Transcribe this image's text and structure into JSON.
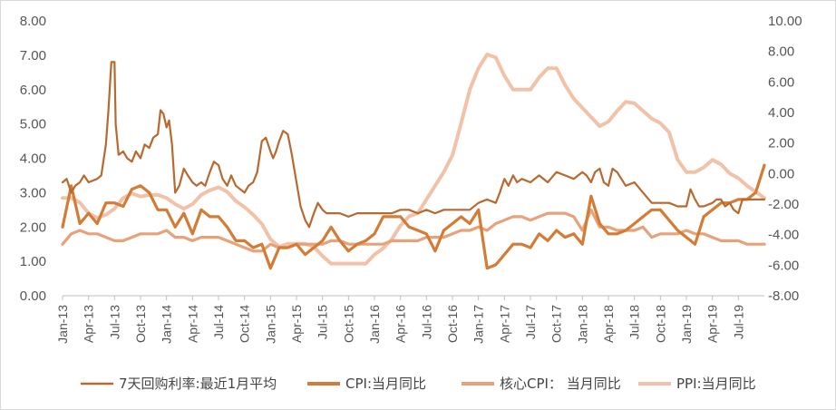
{
  "chart_data": {
    "type": "line",
    "title": "",
    "xlabel": "",
    "ylabel": "",
    "y_left": {
      "min": 0,
      "max": 8,
      "ticks": [
        "0.00",
        "1.00",
        "2.00",
        "3.00",
        "4.00",
        "5.00",
        "6.00",
        "7.00",
        "8.00"
      ]
    },
    "y_right": {
      "min": -8,
      "max": 10,
      "ticks": [
        "-8.00",
        "-6.00",
        "-4.00",
        "-2.00",
        "0.00",
        "2.00",
        "4.00",
        "6.00",
        "8.00",
        "10.00"
      ]
    },
    "x_ticks": [
      "Jan-13",
      "Apr-13",
      "Jul-13",
      "Oct-13",
      "Jan-14",
      "Apr-14",
      "Jul-14",
      "Oct-14",
      "Jan-15",
      "Apr-15",
      "Jul-15",
      "Oct-15",
      "Jan-16",
      "Apr-16",
      "Jul-16",
      "Oct-16",
      "Jan-17",
      "Apr-17",
      "Jul-17",
      "Oct-17",
      "Jan-18",
      "Apr-18",
      "Jul-18",
      "Oct-18",
      "Jan-19",
      "Apr-19",
      "Jul-19"
    ],
    "x_range": [
      "2013-01",
      "2019-10"
    ],
    "grid": false,
    "legend_position": "bottom",
    "series": [
      {
        "name": "7天回购利率:最近1月平均",
        "axis": "left",
        "color": "#b8692f",
        "x": [
          "2013-01",
          "2013-01-15",
          "2013-02",
          "2013-02-15",
          "2013-03",
          "2013-03-15",
          "2013-04",
          "2013-05",
          "2013-05-15",
          "2013-06",
          "2013-06-10",
          "2013-06-20",
          "2013-07",
          "2013-07-05",
          "2013-07-15",
          "2013-08",
          "2013-08-15",
          "2013-09",
          "2013-09-15",
          "2013-10",
          "2013-10-15",
          "2013-11",
          "2013-11-15",
          "2013-12",
          "2013-12-10",
          "2013-12-20",
          "2014-01",
          "2014-01-10",
          "2014-01-20",
          "2014-02",
          "2014-02-15",
          "2014-03",
          "2014-03-15",
          "2014-04",
          "2014-04-15",
          "2014-05",
          "2014-05-15",
          "2014-06",
          "2014-06-15",
          "2014-07",
          "2014-07-15",
          "2014-08",
          "2014-08-15",
          "2014-09",
          "2014-10",
          "2014-10-15",
          "2014-11",
          "2014-11-15",
          "2014-12",
          "2014-12-15",
          "2015-01",
          "2015-01-10",
          "2015-01-20",
          "2015-02",
          "2015-02-15",
          "2015-03",
          "2015-03-15",
          "2015-04",
          "2015-04-15",
          "2015-05",
          "2015-05-15",
          "2015-06",
          "2015-06-15",
          "2015-07",
          "2015-07-15",
          "2015-08",
          "2015-09",
          "2015-10",
          "2015-11",
          "2015-12",
          "2016-01",
          "2016-02",
          "2016-03",
          "2016-04",
          "2016-05",
          "2016-06",
          "2016-07",
          "2016-08",
          "2016-09",
          "2016-10",
          "2016-11",
          "2016-12",
          "2017-01",
          "2017-02",
          "2017-03",
          "2017-03-15",
          "2017-04",
          "2017-04-15",
          "2017-05",
          "2017-05-15",
          "2017-06",
          "2017-07",
          "2017-08",
          "2017-09",
          "2017-10",
          "2017-11",
          "2017-12",
          "2018-01",
          "2018-01-15",
          "2018-02",
          "2018-02-15",
          "2018-03",
          "2018-03-15",
          "2018-04",
          "2018-04-15",
          "2018-05",
          "2018-06",
          "2018-07",
          "2018-08",
          "2018-09",
          "2018-10",
          "2018-11",
          "2018-12",
          "2019-01",
          "2019-01-15",
          "2019-02",
          "2019-02-15",
          "2019-03",
          "2019-04",
          "2019-04-15",
          "2019-05",
          "2019-05-15",
          "2019-06",
          "2019-06-15",
          "2019-07",
          "2019-07-15",
          "2019-08",
          "2019-09",
          "2019-10"
        ],
        "values": [
          3.3,
          3.4,
          3.0,
          3.2,
          3.3,
          3.5,
          3.3,
          3.4,
          3.5,
          4.4,
          5.4,
          6.8,
          6.8,
          5.0,
          4.1,
          4.2,
          4.0,
          3.9,
          4.2,
          4.0,
          4.4,
          4.3,
          4.6,
          4.7,
          5.4,
          5.3,
          4.9,
          5.1,
          4.4,
          3.0,
          3.2,
          3.7,
          3.5,
          3.3,
          3.2,
          3.3,
          3.2,
          3.6,
          3.9,
          3.8,
          3.4,
          3.2,
          3.5,
          3.2,
          3.0,
          3.2,
          3.3,
          3.6,
          4.5,
          4.6,
          4.2,
          4.0,
          4.2,
          4.5,
          4.8,
          4.7,
          4.1,
          3.3,
          2.6,
          2.2,
          2.0,
          2.4,
          2.7,
          2.5,
          2.4,
          2.4,
          2.4,
          2.3,
          2.4,
          2.4,
          2.4,
          2.4,
          2.4,
          2.5,
          2.5,
          2.4,
          2.5,
          2.4,
          2.5,
          2.5,
          2.5,
          2.5,
          2.7,
          2.8,
          2.7,
          3.0,
          3.4,
          3.2,
          3.5,
          3.3,
          3.4,
          3.3,
          3.5,
          3.3,
          3.6,
          3.5,
          3.4,
          3.6,
          3.5,
          3.3,
          3.6,
          3.7,
          3.3,
          3.2,
          3.7,
          3.6,
          3.2,
          3.3,
          3.0,
          2.7,
          2.7,
          2.7,
          2.6,
          2.6,
          3.1,
          2.8,
          2.6,
          2.6,
          2.7,
          2.8,
          2.8,
          2.6,
          2.7,
          2.5,
          2.4,
          2.8,
          2.8,
          2.8,
          2.8
        ]
      },
      {
        "name": "CPI:当月同比",
        "axis": "left",
        "color": "#d47b35",
        "x": [
          "2013-01",
          "2013-02",
          "2013-03",
          "2013-04",
          "2013-05",
          "2013-06",
          "2013-07",
          "2013-08",
          "2013-09",
          "2013-10",
          "2013-11",
          "2013-12",
          "2014-01",
          "2014-02",
          "2014-03",
          "2014-04",
          "2014-05",
          "2014-06",
          "2014-07",
          "2014-08",
          "2014-09",
          "2014-10",
          "2014-11",
          "2014-12",
          "2015-01",
          "2015-02",
          "2015-03",
          "2015-04",
          "2015-05",
          "2015-06",
          "2015-07",
          "2015-08",
          "2015-09",
          "2015-10",
          "2015-11",
          "2015-12",
          "2016-01",
          "2016-02",
          "2016-03",
          "2016-04",
          "2016-05",
          "2016-06",
          "2016-07",
          "2016-08",
          "2016-09",
          "2016-10",
          "2016-11",
          "2016-12",
          "2017-01",
          "2017-02",
          "2017-03",
          "2017-04",
          "2017-05",
          "2017-06",
          "2017-07",
          "2017-08",
          "2017-09",
          "2017-10",
          "2017-11",
          "2017-12",
          "2018-01",
          "2018-02",
          "2018-03",
          "2018-04",
          "2018-05",
          "2018-06",
          "2018-07",
          "2018-08",
          "2018-09",
          "2018-10",
          "2018-11",
          "2018-12",
          "2019-01",
          "2019-02",
          "2019-03",
          "2019-04",
          "2019-05",
          "2019-06",
          "2019-07",
          "2019-08",
          "2019-09",
          "2019-10"
        ],
        "values": [
          2.0,
          3.2,
          2.1,
          2.4,
          2.1,
          2.7,
          2.7,
          2.6,
          3.1,
          3.2,
          3.0,
          2.5,
          2.5,
          2.0,
          2.4,
          1.8,
          2.5,
          2.3,
          2.3,
          2.0,
          1.6,
          1.6,
          1.4,
          1.5,
          0.8,
          1.4,
          1.4,
          1.5,
          1.2,
          1.4,
          1.6,
          2.0,
          1.6,
          1.3,
          1.5,
          1.6,
          1.8,
          2.3,
          2.3,
          2.3,
          2.0,
          1.9,
          1.8,
          1.3,
          1.9,
          2.1,
          2.3,
          2.1,
          2.5,
          0.8,
          0.9,
          1.2,
          1.5,
          1.5,
          1.4,
          1.8,
          1.6,
          1.9,
          1.7,
          1.8,
          1.5,
          2.9,
          2.1,
          1.8,
          1.8,
          1.9,
          2.1,
          2.3,
          2.5,
          2.5,
          2.2,
          1.9,
          1.7,
          1.5,
          2.3,
          2.5,
          2.7,
          2.7,
          2.8,
          2.8,
          3.0,
          3.8
        ]
      },
      {
        "name": "核心CPI： 当月同比",
        "axis": "left",
        "color": "#e8a27a",
        "x": [
          "2013-01",
          "2013-02",
          "2013-03",
          "2013-04",
          "2013-05",
          "2013-06",
          "2013-07",
          "2013-08",
          "2013-09",
          "2013-10",
          "2013-11",
          "2013-12",
          "2014-01",
          "2014-02",
          "2014-03",
          "2014-04",
          "2014-05",
          "2014-06",
          "2014-07",
          "2014-08",
          "2014-09",
          "2014-10",
          "2014-11",
          "2014-12",
          "2015-01",
          "2015-02",
          "2015-03",
          "2015-04",
          "2015-05",
          "2015-06",
          "2015-07",
          "2015-08",
          "2015-09",
          "2015-10",
          "2015-11",
          "2015-12",
          "2016-01",
          "2016-02",
          "2016-03",
          "2016-04",
          "2016-05",
          "2016-06",
          "2016-07",
          "2016-08",
          "2016-09",
          "2016-10",
          "2016-11",
          "2016-12",
          "2017-01",
          "2017-02",
          "2017-03",
          "2017-04",
          "2017-05",
          "2017-06",
          "2017-07",
          "2017-08",
          "2017-09",
          "2017-10",
          "2017-11",
          "2017-12",
          "2018-01",
          "2018-02",
          "2018-03",
          "2018-04",
          "2018-05",
          "2018-06",
          "2018-07",
          "2018-08",
          "2018-09",
          "2018-10",
          "2018-11",
          "2018-12",
          "2019-01",
          "2019-02",
          "2019-03",
          "2019-04",
          "2019-05",
          "2019-06",
          "2019-07",
          "2019-08",
          "2019-09",
          "2019-10"
        ],
        "values": [
          1.5,
          1.8,
          1.9,
          1.8,
          1.8,
          1.7,
          1.6,
          1.6,
          1.7,
          1.8,
          1.8,
          1.8,
          1.9,
          1.7,
          1.7,
          1.6,
          1.7,
          1.7,
          1.7,
          1.6,
          1.5,
          1.4,
          1.3,
          1.3,
          1.5,
          1.4,
          1.4,
          1.5,
          1.5,
          1.5,
          1.5,
          1.6,
          1.6,
          1.5,
          1.5,
          1.5,
          1.5,
          1.5,
          1.6,
          1.6,
          1.6,
          1.6,
          1.7,
          1.7,
          1.7,
          1.8,
          1.9,
          1.9,
          2.0,
          1.9,
          2.1,
          2.2,
          2.3,
          2.3,
          2.2,
          2.3,
          2.4,
          2.4,
          2.4,
          2.3,
          1.9,
          2.5,
          2.0,
          2.0,
          1.9,
          1.9,
          1.9,
          2.0,
          1.7,
          1.8,
          1.8,
          1.8,
          1.9,
          1.8,
          1.8,
          1.7,
          1.6,
          1.6,
          1.6,
          1.5,
          1.5,
          1.5
        ]
      },
      {
        "name": "PPI:当月同比",
        "axis": "right",
        "color": "#f2c2a8",
        "x": [
          "2013-01",
          "2013-02",
          "2013-03",
          "2013-04",
          "2013-05",
          "2013-06",
          "2013-07",
          "2013-08",
          "2013-09",
          "2013-10",
          "2013-11",
          "2013-12",
          "2014-01",
          "2014-02",
          "2014-03",
          "2014-04",
          "2014-05",
          "2014-06",
          "2014-07",
          "2014-08",
          "2014-09",
          "2014-10",
          "2014-11",
          "2014-12",
          "2015-01",
          "2015-02",
          "2015-03",
          "2015-04",
          "2015-05",
          "2015-06",
          "2015-07",
          "2015-08",
          "2015-09",
          "2015-10",
          "2015-11",
          "2015-12",
          "2016-01",
          "2016-02",
          "2016-03",
          "2016-04",
          "2016-05",
          "2016-06",
          "2016-07",
          "2016-08",
          "2016-09",
          "2016-10",
          "2016-11",
          "2016-12",
          "2017-01",
          "2017-02",
          "2017-03",
          "2017-04",
          "2017-05",
          "2017-06",
          "2017-07",
          "2017-08",
          "2017-09",
          "2017-10",
          "2017-11",
          "2017-12",
          "2018-01",
          "2018-02",
          "2018-03",
          "2018-04",
          "2018-05",
          "2018-06",
          "2018-07",
          "2018-08",
          "2018-09",
          "2018-10",
          "2018-11",
          "2018-12",
          "2019-01",
          "2019-02",
          "2019-03",
          "2019-04",
          "2019-05",
          "2019-06",
          "2019-07",
          "2019-08",
          "2019-09",
          "2019-10"
        ],
        "values": [
          -1.6,
          -1.6,
          -1.9,
          -2.6,
          -2.9,
          -2.7,
          -2.3,
          -1.6,
          -1.3,
          -1.5,
          -1.4,
          -1.4,
          -1.6,
          -2.0,
          -2.3,
          -2.0,
          -1.4,
          -1.1,
          -0.9,
          -1.2,
          -1.8,
          -2.2,
          -2.7,
          -3.3,
          -4.3,
          -4.8,
          -4.6,
          -4.6,
          -4.6,
          -4.8,
          -5.4,
          -5.9,
          -5.9,
          -5.9,
          -5.9,
          -5.9,
          -5.3,
          -4.9,
          -4.3,
          -3.4,
          -2.8,
          -2.6,
          -1.7,
          -0.8,
          0.1,
          1.2,
          3.3,
          5.5,
          6.9,
          7.8,
          7.6,
          6.4,
          5.5,
          5.5,
          5.5,
          6.3,
          6.9,
          6.9,
          5.8,
          4.9,
          4.3,
          3.7,
          3.1,
          3.4,
          4.1,
          4.7,
          4.6,
          4.1,
          3.6,
          3.3,
          2.7,
          0.9,
          0.1,
          0.1,
          0.4,
          0.9,
          0.6,
          0.0,
          -0.3,
          -0.8,
          -1.2,
          -1.6
        ]
      }
    ]
  }
}
